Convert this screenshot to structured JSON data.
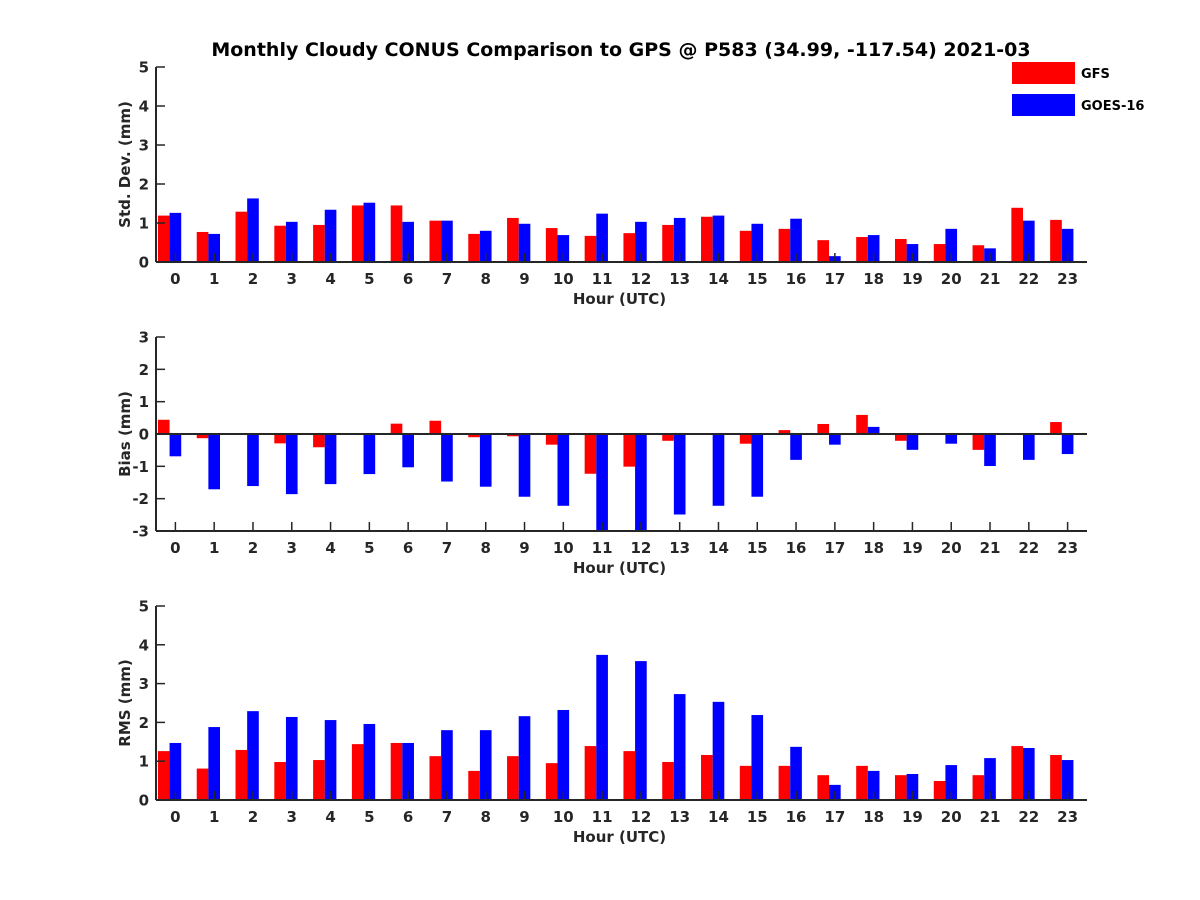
{
  "chart_data": {
    "type": "bar",
    "title": "Monthly Cloudy CONUS Comparison to GPS @ P583 (34.99, -117.54) 2021-03",
    "legend": {
      "placement": "top-right",
      "entries": [
        {
          "name": "GFS",
          "color": "#ff0000"
        },
        {
          "name": "GOES-16",
          "color": "#0000ff"
        }
      ]
    },
    "categories": [
      "0",
      "1",
      "2",
      "3",
      "4",
      "5",
      "6",
      "7",
      "8",
      "9",
      "10",
      "11",
      "12",
      "13",
      "14",
      "15",
      "16",
      "17",
      "18",
      "19",
      "20",
      "21",
      "22",
      "23"
    ],
    "grid": false,
    "panels": [
      {
        "name": "std-dev",
        "xlabel": "Hour (UTC)",
        "ylabel": "Std. Dev. (mm)",
        "ylim": [
          0,
          5
        ],
        "yticks": [
          0,
          1,
          2,
          3,
          4,
          5
        ],
        "series": [
          {
            "name": "GFS",
            "values": [
              1.19,
              0.77,
              1.29,
              0.93,
              0.95,
              1.45,
              1.45,
              1.06,
              0.72,
              1.13,
              0.87,
              0.67,
              0.74,
              0.95,
              1.16,
              0.8,
              0.85,
              0.56,
              0.64,
              0.59,
              0.46,
              0.43,
              1.39,
              1.08
            ]
          },
          {
            "name": "GOES-16",
            "values": [
              1.26,
              0.72,
              1.63,
              1.03,
              1.34,
              1.52,
              1.03,
              1.06,
              0.8,
              0.98,
              0.69,
              1.24,
              1.03,
              1.13,
              1.19,
              0.98,
              1.11,
              0.15,
              0.69,
              0.46,
              0.85,
              0.35,
              1.06,
              0.85
            ]
          }
        ]
      },
      {
        "name": "bias",
        "xlabel": "Hour (UTC)",
        "ylabel": "Bias (mm)",
        "ylim": [
          -3,
          3
        ],
        "yticks": [
          -3,
          -2,
          -1,
          0,
          1,
          2,
          3
        ],
        "series": [
          {
            "name": "GFS",
            "values": [
              0.44,
              -0.13,
              0.0,
              -0.29,
              -0.41,
              0.0,
              0.32,
              0.41,
              -0.1,
              -0.07,
              -0.33,
              -1.23,
              -1.01,
              -0.21,
              0.02,
              -0.3,
              0.12,
              0.31,
              0.59,
              -0.21,
              0.02,
              -0.49,
              0.02,
              0.37
            ]
          },
          {
            "name": "GOES-16",
            "values": [
              -0.69,
              -1.71,
              -1.61,
              -1.86,
              -1.55,
              -1.24,
              -1.03,
              -1.47,
              -1.63,
              -1.94,
              -2.22,
              -3.0,
              -3.0,
              -2.49,
              -2.22,
              -1.94,
              -0.8,
              -0.33,
              0.22,
              -0.49,
              -0.3,
              -0.99,
              -0.8,
              -0.62
            ]
          }
        ]
      },
      {
        "name": "rms",
        "xlabel": "Hour (UTC)",
        "ylabel": "RMS (mm)",
        "ylim": [
          0,
          5
        ],
        "yticks": [
          0,
          1,
          2,
          3,
          4,
          5
        ],
        "series": [
          {
            "name": "GFS",
            "values": [
              1.26,
              0.81,
              1.29,
              0.98,
              1.03,
              1.44,
              1.47,
              1.13,
              0.75,
              1.13,
              0.95,
              1.39,
              1.26,
              0.98,
              1.16,
              0.88,
              0.88,
              0.64,
              0.88,
              0.64,
              0.49,
              0.64,
              1.39,
              1.16
            ]
          },
          {
            "name": "GOES-16",
            "values": [
              1.47,
              1.88,
              2.29,
              2.14,
              2.06,
              1.96,
              1.47,
              1.8,
              1.8,
              2.16,
              2.32,
              3.74,
              3.58,
              2.73,
              2.53,
              2.19,
              1.37,
              0.39,
              0.75,
              0.67,
              0.9,
              1.08,
              1.34,
              1.03
            ]
          }
        ]
      }
    ]
  }
}
